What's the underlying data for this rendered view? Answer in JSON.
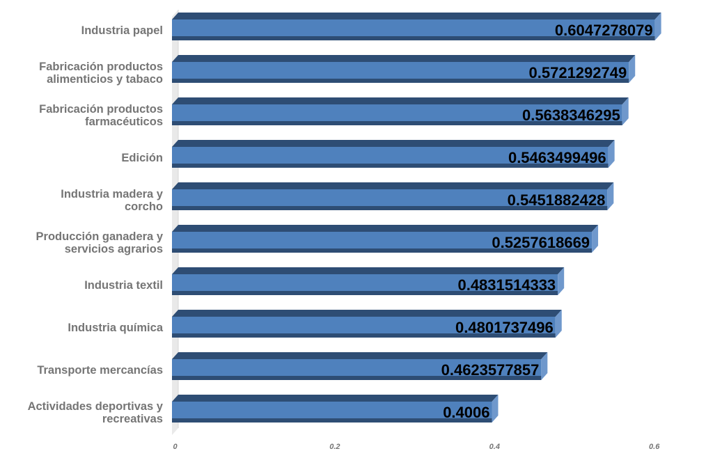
{
  "chart_data": {
    "type": "bar",
    "orientation": "horizontal",
    "style": "3d",
    "categories": [
      "Industria papel",
      "Fabricación productos alimenticios y tabaco",
      "Fabricación productos farmacéuticos",
      "Edición",
      "Industria madera y corcho",
      "Producción ganadera y servicios agrarios",
      "Industria textil",
      "Industria química",
      "Transporte mercancías",
      "Actividades deportivas y recreativas"
    ],
    "values": [
      0.6047278079,
      0.5721292749,
      0.5638346295,
      0.5463499496,
      0.5451882428,
      0.5257618669,
      0.4831514333,
      0.4801737496,
      0.4623577857,
      0.4006
    ],
    "value_labels": [
      "0.6047278079",
      "0.5721292749",
      "0.5638346295",
      "0.5463499496",
      "0.5451882428",
      "0.5257618669",
      "0.4831514333",
      "0.4801737496",
      "0.4623577857",
      "0.4006"
    ],
    "category_label_lines": [
      [
        "Industria papel"
      ],
      [
        "Fabricación productos",
        "alimenticios y tabaco"
      ],
      [
        "Fabricación productos",
        "farmacéuticos"
      ],
      [
        "Edición"
      ],
      [
        "Industria madera y",
        "corcho"
      ],
      [
        "Producción ganadera y",
        "servicios agrarios"
      ],
      [
        "Industria textil"
      ],
      [
        "Industria química"
      ],
      [
        "Transporte mercancías"
      ],
      [
        "Actividades deportivas y",
        "recreativas"
      ]
    ],
    "xlim": [
      0,
      0.6
    ],
    "xticks": [
      0,
      0.2,
      0.4,
      0.6
    ],
    "xtick_labels": [
      "0",
      "0.2",
      "0.4",
      "0.6"
    ],
    "title": "",
    "xlabel": "",
    "ylabel": "",
    "grid": false,
    "legend": "none",
    "colors": {
      "bar_front": "#4f81bd",
      "bar_top": "#2e4d74",
      "bar_side": "#6f98cc",
      "axis_wall": "#e9e9e9",
      "label_text": "#757575",
      "value_text": "#000000"
    }
  }
}
